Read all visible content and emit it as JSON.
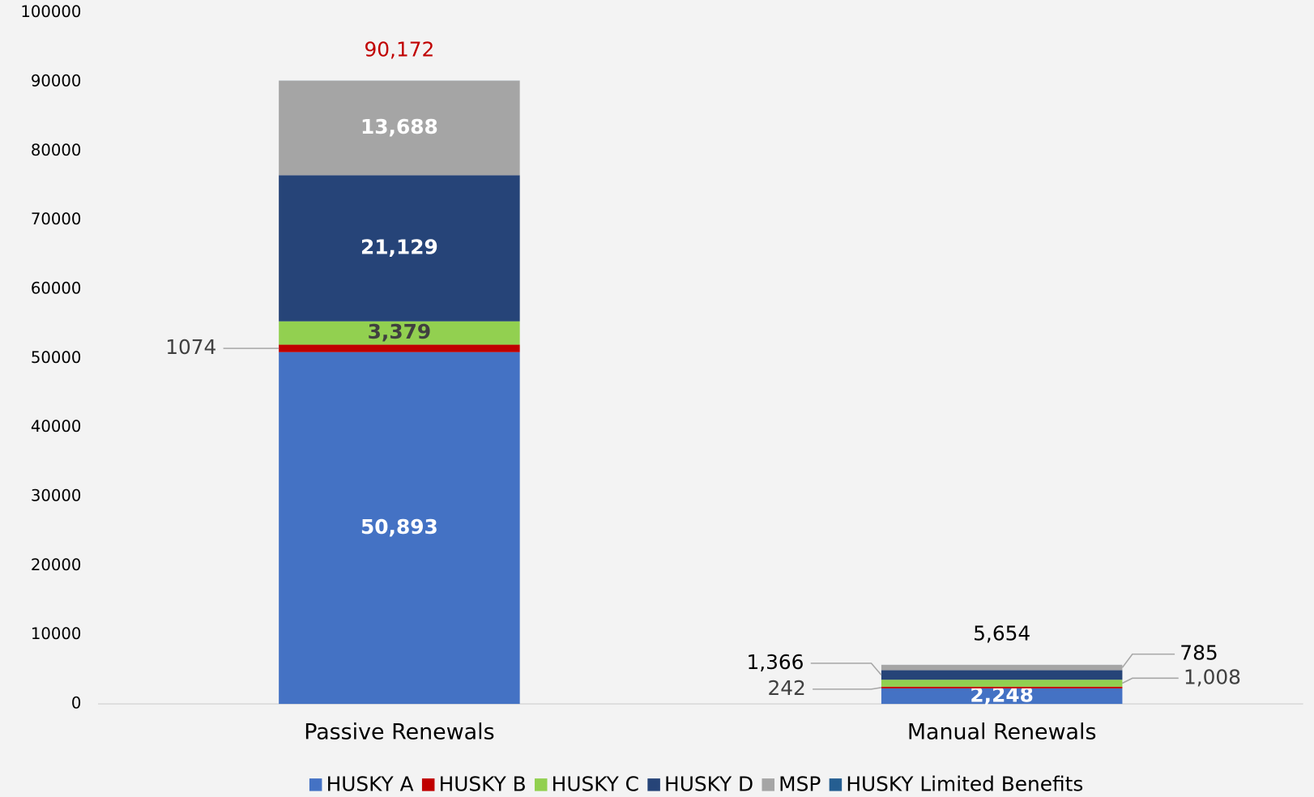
{
  "chart_data": {
    "type": "stacked_bar",
    "categories": [
      "Passive Renewals",
      "Manual Renewals"
    ],
    "series": [
      {
        "name": "HUSKY A",
        "color": "#4472c4",
        "values": [
          50893,
          2248
        ],
        "value_labels": [
          "50,893",
          "2,248"
        ]
      },
      {
        "name": "HUSKY B",
        "color": "#c00000",
        "values": [
          1074,
          242
        ],
        "value_labels": [
          "1074",
          "242"
        ]
      },
      {
        "name": "HUSKY C",
        "color": "#92d050",
        "values": [
          3379,
          1008
        ],
        "value_labels": [
          "3,379",
          "1,008"
        ]
      },
      {
        "name": "HUSKY D",
        "color": "#264478",
        "values": [
          21129,
          1366
        ],
        "value_labels": [
          "21,129",
          "1,366"
        ]
      },
      {
        "name": "MSP",
        "color": "#a5a5a5",
        "values": [
          13688,
          785
        ],
        "value_labels": [
          "13,688",
          "785"
        ]
      },
      {
        "name": "HUSKY Limited Benefits",
        "color": "#255e91",
        "values": [
          9,
          5
        ]
      }
    ],
    "totals": {
      "values": [
        90172,
        5654
      ],
      "value_labels": [
        "90,172",
        "5,654"
      ],
      "colors": [
        "#c00000",
        "#000000"
      ]
    },
    "ylim": [
      0,
      100000
    ],
    "yticks": [
      0,
      10000,
      20000,
      30000,
      40000,
      50000,
      60000,
      70000,
      80000,
      90000,
      100000
    ],
    "grid": false,
    "legend": "bottom"
  }
}
